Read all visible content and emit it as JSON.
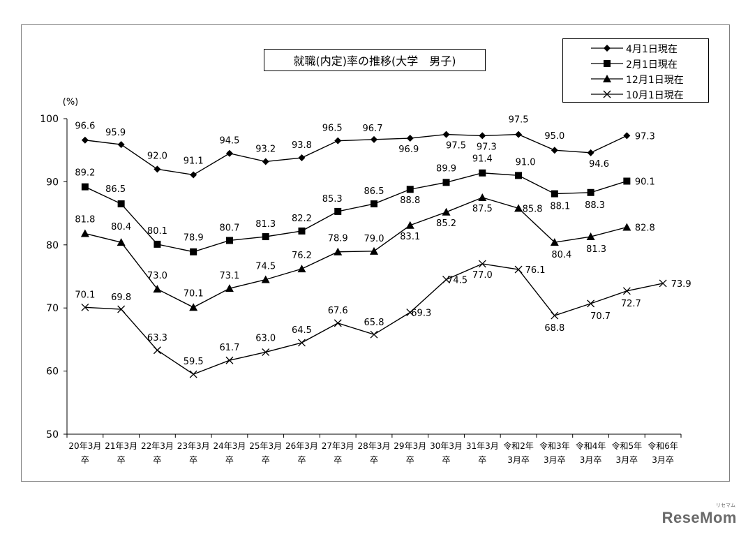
{
  "chart_data": {
    "type": "line",
    "title": "就職(内定)率の推移(大学　男子)",
    "unit_label": "(%)",
    "ylim": [
      50,
      100
    ],
    "yticks": [
      50,
      60,
      70,
      80,
      90,
      100
    ],
    "grid": false,
    "legend_position": "top-right",
    "categories": [
      [
        "20年3月",
        "卒"
      ],
      [
        "21年3月",
        "卒"
      ],
      [
        "22年3月",
        "卒"
      ],
      [
        "23年3月",
        "卒"
      ],
      [
        "24年3月",
        "卒"
      ],
      [
        "25年3月",
        "卒"
      ],
      [
        "26年3月",
        "卒"
      ],
      [
        "27年3月",
        "卒"
      ],
      [
        "28年3月",
        "卒"
      ],
      [
        "29年3月",
        "卒"
      ],
      [
        "30年3月",
        "卒"
      ],
      [
        "31年3月",
        "卒"
      ],
      [
        "令和2年",
        "3月卒"
      ],
      [
        "令和3年",
        "3月卒"
      ],
      [
        "令和4年",
        "3月卒"
      ],
      [
        "令和5年",
        "3月卒"
      ],
      [
        "令和6年",
        "3月卒"
      ]
    ],
    "series": [
      {
        "name": "4月1日現在",
        "marker": "diamond",
        "values": [
          96.6,
          95.9,
          92.0,
          91.1,
          94.5,
          93.2,
          93.8,
          96.5,
          96.7,
          96.9,
          97.5,
          97.3,
          97.5,
          95.0,
          94.6,
          97.3,
          null
        ],
        "labels": [
          "96.6",
          "95.9",
          "92.0",
          "91.1",
          "94.5",
          "93.2",
          "93.8",
          "96.5",
          "96.7",
          "96.9",
          "97.5",
          "97.3",
          "97.5",
          "95.0",
          "94.6",
          "97.3",
          null
        ]
      },
      {
        "name": "2月1日現在",
        "marker": "square",
        "values": [
          89.2,
          86.5,
          80.1,
          78.9,
          80.7,
          81.3,
          82.2,
          85.3,
          86.5,
          88.8,
          89.9,
          91.4,
          91.0,
          88.1,
          88.3,
          90.1,
          null
        ],
        "labels": [
          "89.2",
          "86.5",
          "80.1",
          "78.9",
          "80.7",
          "81.3",
          "82.2",
          "85.3",
          "86.5",
          "88.8",
          "89.9",
          "91.4",
          "91.0",
          "88.1",
          "88.3",
          "90.1",
          null
        ]
      },
      {
        "name": "12月1日現在",
        "marker": "triangle",
        "values": [
          81.8,
          80.4,
          73.0,
          70.1,
          73.1,
          74.5,
          76.2,
          78.9,
          79.0,
          83.1,
          85.2,
          87.5,
          85.8,
          80.4,
          81.3,
          82.8,
          null
        ],
        "labels": [
          "81.8",
          "80.4",
          "73.0",
          "70.1",
          "73.1",
          "74.5",
          "76.2",
          "78.9",
          "79.0",
          "83.1",
          "85.2",
          "87.5",
          "85.8",
          "80.4",
          "81.3",
          "82.8",
          null
        ]
      },
      {
        "name": "10月1日現在",
        "marker": "x",
        "values": [
          70.1,
          69.8,
          63.3,
          59.5,
          61.7,
          63.0,
          64.5,
          67.6,
          65.8,
          69.3,
          74.5,
          77.0,
          76.1,
          68.8,
          70.7,
          72.7,
          73.9
        ],
        "labels": [
          "70.1",
          "69.8",
          "63.3",
          "59.5",
          "61.7",
          "63.0",
          "64.5",
          "67.6",
          "65.8",
          "69.3",
          "74.5",
          "77.0",
          "76.1",
          "68.8",
          "70.7",
          "72.7",
          "73.9"
        ]
      }
    ]
  },
  "watermark": {
    "text": "ReseMom",
    "sub": "リセマム"
  }
}
